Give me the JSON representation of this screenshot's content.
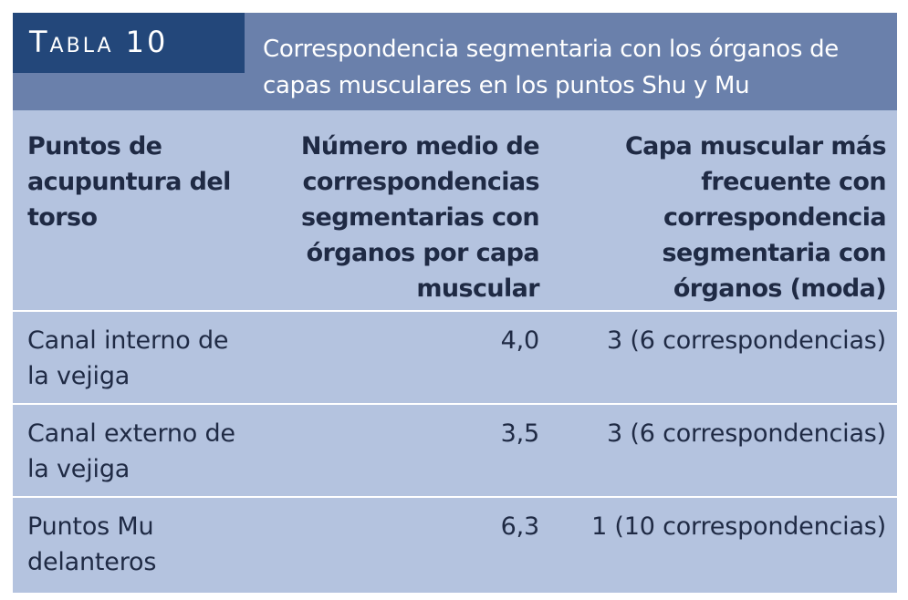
{
  "table": {
    "label": "Tabla 10",
    "caption": "Correspondencia segmentaria con los órganos de capas musculares en los puntos Shu y Mu",
    "colors": {
      "label_bg": "#23477a",
      "title_band_bg": "#6a80ab",
      "body_bg": "#b4c3df",
      "text": "#1f2a44",
      "divider": "#ffffff"
    },
    "headers": [
      "Puntos de acupuntura del torso",
      "Número medio de correspondencias segmentarias con órganos por capa muscular",
      "Capa muscular más frecuente con correspondencia segmentaria con órganos (moda)"
    ],
    "rows": [
      {
        "punto": "Canal interno de la vejiga",
        "numero_medio": "4,0",
        "capa": "3 (6 correspondencias)"
      },
      {
        "punto": "Canal externo de la vejiga",
        "numero_medio": "3,5",
        "capa": "3 (6 correspondencias)"
      },
      {
        "punto": "Puntos Mu delanteros",
        "numero_medio": "6,3",
        "capa": "1 (10 correspondencias)"
      }
    ]
  }
}
